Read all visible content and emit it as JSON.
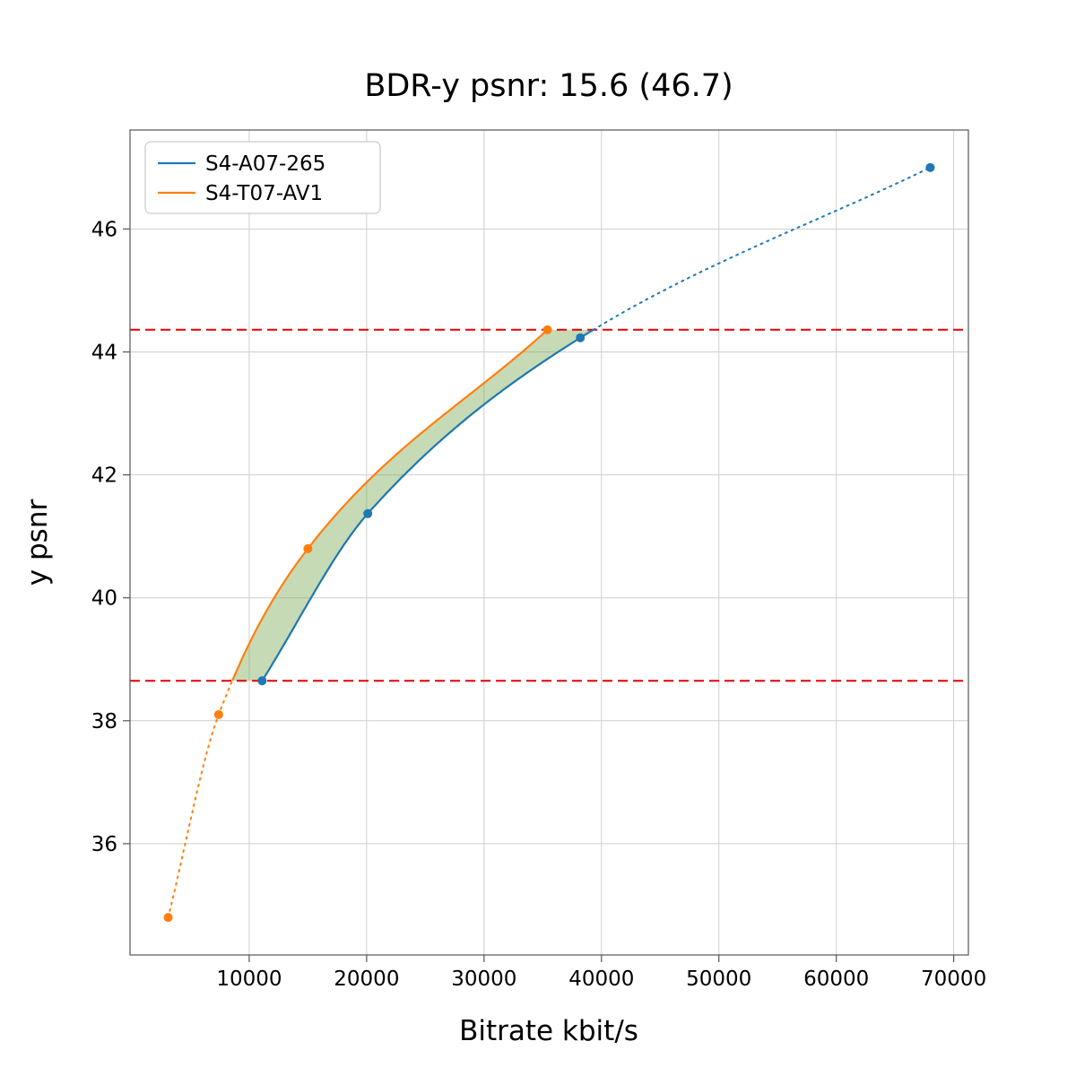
{
  "figure": {
    "title": "BDR-y psnr: 15.6 (46.7)"
  },
  "chart_data": {
    "type": "line",
    "title": "BDR-y psnr: 15.6 (46.7)",
    "xlabel": "Bitrate kbit/s",
    "ylabel": "y psnr",
    "xlim": [
      -150,
      71250
    ],
    "ylim": [
      34.19,
      47.61
    ],
    "xticks": [
      10000,
      20000,
      30000,
      40000,
      50000,
      60000,
      70000
    ],
    "yticks": [
      36,
      38,
      40,
      42,
      44,
      46
    ],
    "grid": true,
    "legend_position": "upper left",
    "series": [
      {
        "name": "S4-A07-265",
        "color": "#1f77b4",
        "x": [
          11100,
          20100,
          38200,
          68000
        ],
        "y": [
          38.65,
          41.37,
          44.23,
          47.0
        ]
      },
      {
        "name": "S4-T07-AV1",
        "color": "#ff7f0e",
        "x": [
          3100,
          7400,
          15000,
          35400
        ],
        "y": [
          34.8,
          38.1,
          40.8,
          44.36
        ]
      }
    ],
    "overlap_lines": {
      "color": "#e60000",
      "style": "dashed",
      "y_values": [
        38.65,
        44.36
      ]
    },
    "shaded_region": {
      "between": [
        "S4-A07-265",
        "S4-T07-AV1"
      ],
      "y_range": [
        38.65,
        44.36
      ],
      "color": "#74a84e",
      "opacity": 0.42
    }
  }
}
